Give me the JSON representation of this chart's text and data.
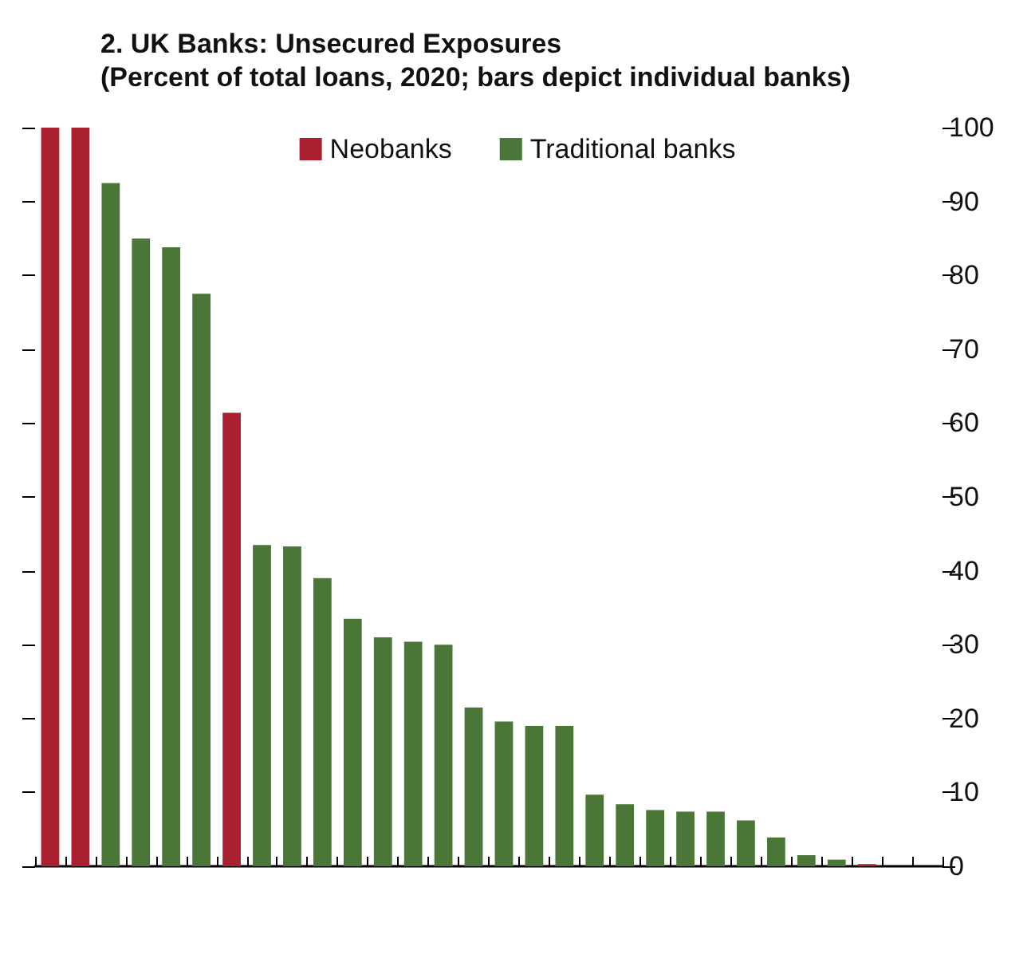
{
  "chart_data": {
    "type": "bar",
    "title": "2. UK Banks: Unsecured Exposures",
    "subtitle": "(Percent of total loans, 2020; bars depict individual banks)",
    "categories": [
      null,
      null,
      null,
      null,
      null,
      null,
      null,
      null,
      null,
      null,
      null,
      null,
      null,
      null,
      null,
      null,
      null,
      null,
      null,
      null,
      null,
      null,
      null,
      null,
      null,
      null,
      null,
      null,
      null,
      null
    ],
    "series": [
      {
        "name": "Neobanks",
        "color": "#ab2030",
        "values": [
          100,
          100,
          null,
          null,
          null,
          null,
          61.4,
          null,
          null,
          null,
          null,
          null,
          null,
          null,
          null,
          null,
          null,
          null,
          null,
          null,
          null,
          null,
          null,
          null,
          null,
          null,
          null,
          0.3,
          null,
          null
        ]
      },
      {
        "name": "Traditional banks",
        "color": "#4a7637",
        "values": [
          null,
          null,
          92.5,
          85,
          83.8,
          77.5,
          null,
          43.5,
          43.3,
          39,
          33.5,
          31,
          30.4,
          30,
          21.5,
          19.6,
          19,
          19,
          9.7,
          8.4,
          7.6,
          7.4,
          7.4,
          6.2,
          3.9,
          1.5,
          0.9,
          null,
          null,
          null
        ]
      }
    ],
    "ylim": [
      0,
      100
    ],
    "yticks": [
      0,
      10,
      20,
      30,
      40,
      50,
      60,
      70,
      80,
      90,
      100
    ],
    "grid": false,
    "legend": "top"
  }
}
